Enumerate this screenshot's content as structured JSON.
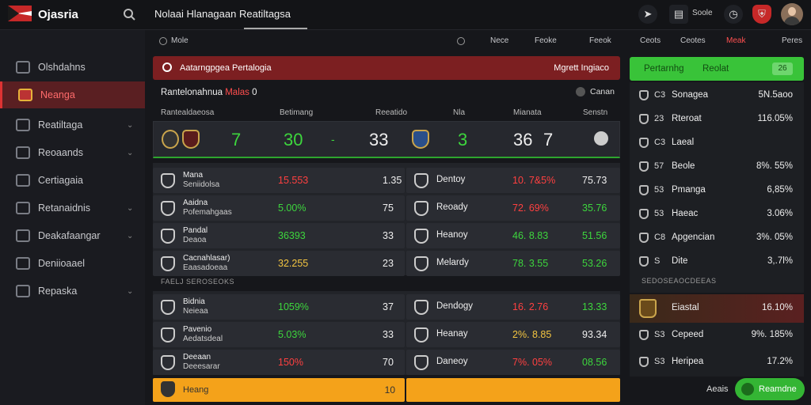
{
  "topbar": {
    "app_name": "Ojasria",
    "page_title": "Nolaai Hlanagaan Reatiltagsa",
    "user_label": "Soole",
    "icons": [
      "search-icon",
      "rocket-icon",
      "book-icon",
      "clock-icon",
      "crest-icon"
    ]
  },
  "sidebar": {
    "items": [
      {
        "label": "Olshdahns",
        "chevron": false
      },
      {
        "label": "Neanga",
        "chevron": false
      },
      {
        "label": "Reatiltaga",
        "chevron": true
      },
      {
        "label": "Reoaands",
        "chevron": true
      },
      {
        "label": "Certiagaia",
        "chevron": false
      },
      {
        "label": "Retanaidnis",
        "chevron": true
      },
      {
        "label": "Deakafaangar",
        "chevron": true
      },
      {
        "label": "Deniioaael",
        "chevron": false
      },
      {
        "label": "Repaska",
        "chevron": true
      }
    ]
  },
  "toolbar": {
    "left": "Mole",
    "items": [
      "Nece",
      "Feoke",
      "Feeok",
      "Ceots",
      "Ceotes",
      "Meak",
      "Peres"
    ]
  },
  "alert": {
    "left": "Aatarngpgea Pertalogia",
    "right": "Mgrett Ingiaco"
  },
  "section": {
    "title_a": "Rantelonahnua",
    "title_b": "Malas",
    "title_c": "0",
    "right": "Canan"
  },
  "columns": [
    "Rantealdaeosa",
    "Betimang",
    "Reeatido",
    "Nla",
    "Mianata",
    "Senstn"
  ],
  "hero": {
    "v1": "7",
    "v2": "30",
    "v3": "-",
    "v4": "33",
    "v5": "3",
    "v6": "36",
    "v7": "7"
  },
  "rows_top": [
    {
      "n1": "Mana",
      "n2": "Seniidolsa",
      "a": "15.553",
      "b": "1.35",
      "opp": "Dentoy",
      "c": "10. 7&5%",
      "d": "75.73",
      "ac": "red",
      "cc": "red",
      "dc": "white"
    },
    {
      "n1": "Aaidna",
      "n2": "Pofemahgaas",
      "a": "5.00%",
      "b": "75",
      "opp": "Reoady",
      "c": "72. 69%",
      "d": "35.76",
      "ac": "green",
      "cc": "red",
      "dc": "green"
    },
    {
      "n1": "Pandal",
      "n2": "Deaoa",
      "a": "36393",
      "b": "33",
      "opp": "Heanoy",
      "c": "46. 8.83",
      "d": "51.56",
      "ac": "green",
      "cc": "green",
      "dc": "green"
    },
    {
      "n1": "Cacnahlasar)",
      "n2": "Eaasadoeaa",
      "a": "32.255",
      "b": "23",
      "opp": "Melardy",
      "c": "78. 3.55",
      "d": "53.26",
      "ac": "yellow",
      "cc": "green",
      "dc": "green"
    }
  ],
  "subhead": "FAELJ SEROSEOKS",
  "rows_bottom": [
    {
      "n1": "Bidnia",
      "n2": "Neieaa",
      "a": "1059%",
      "b": "37",
      "opp": "Dendogy",
      "c": "16. 2.76",
      "d": "13.33",
      "ac": "green",
      "cc": "red",
      "dc": "green"
    },
    {
      "n1": "Pavenio",
      "n2": "Aedatsdeal",
      "a": "5.03%",
      "b": "33",
      "opp": "Heanay",
      "c": "2%. 8.85",
      "d": "93.34",
      "ac": "green",
      "cc": "yellow",
      "dc": "white"
    },
    {
      "n1": "Deeaan",
      "n2": "Deeesarar",
      "a": "150%",
      "b": "70",
      "opp": "Daneoy",
      "c": "7%. 05%",
      "d": "08.56",
      "ac": "red",
      "cc": "red",
      "dc": "green"
    }
  ],
  "orange": {
    "label": "Heang",
    "value": "10"
  },
  "right_panel": {
    "head": {
      "a": "Pertarnhg",
      "b": "Reolat",
      "c": "26"
    },
    "rows": [
      {
        "num": "C3",
        "name": "Sonagea",
        "val": "5N.5aoo",
        "nc": "white",
        "vc": "white"
      },
      {
        "num": "23",
        "name": "Rteroat",
        "val": "116.05%",
        "nc": "green",
        "vc": "green"
      },
      {
        "num": "C3",
        "name": "Laeal",
        "val": "",
        "nc": "white",
        "vc": "white"
      },
      {
        "num": "57",
        "name": "Beole",
        "val": "8%. 55%",
        "nc": "white",
        "vc": "white"
      },
      {
        "num": "53",
        "name": "Pmanga",
        "val": "6,85%",
        "nc": "white",
        "vc": "white"
      },
      {
        "num": "53",
        "name": "Haeac",
        "val": "3.06%",
        "nc": "white",
        "vc": "white"
      },
      {
        "num": "C8",
        "name": "Apgencian",
        "val": "3%. 05%",
        "nc": "white",
        "vc": "green"
      },
      {
        "num": "S",
        "name": "Dite",
        "val": "3,.7l%",
        "nc": "white",
        "vc": "white"
      }
    ],
    "sub": "SEDOSEAOCDEEAS",
    "rows2": [
      {
        "num": "",
        "name": "Eiastal",
        "val": "16.10%"
      },
      {
        "num": "S3",
        "name": "Cepeed",
        "val": "9%. 185%"
      },
      {
        "num": "S3",
        "name": "Heripea",
        "val": "17.2%"
      }
    ],
    "foot_label": "Aeais",
    "foot_button": "Reamdne"
  },
  "colors": {
    "accent_red": "#7c1f21",
    "accent_green": "#39c339",
    "accent_orange": "#f4a21a"
  }
}
